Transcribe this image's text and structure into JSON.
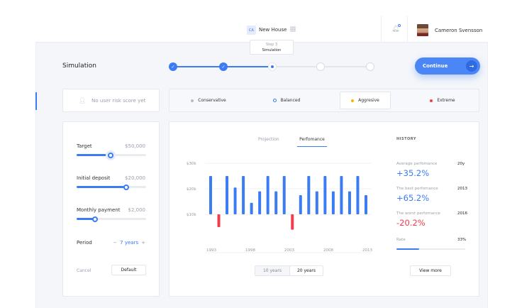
{
  "header": {
    "project_badge": "CA",
    "project_name": "New House",
    "user_name": "Cameron Svensson"
  },
  "page_title": "Simulation",
  "stepper": {
    "tooltip_step": "Step 3",
    "tooltip_label": "Simulation",
    "steps": [
      "done",
      "done",
      "current",
      "todo",
      "todo"
    ]
  },
  "continue_label": "Continue",
  "risk_score": "No user risk score yet",
  "risk_options": [
    {
      "label": "Conservative",
      "color": "#b7bcc6"
    },
    {
      "label": "Balanced",
      "color": "#3b7cf4",
      "selected": false
    },
    {
      "label": "Aggresive",
      "color": "#f5b400",
      "selected": true
    },
    {
      "label": "Extreme",
      "color": "#f23b4b"
    }
  ],
  "controls": {
    "target": {
      "label": "Target",
      "value": "$50,000",
      "fraction": 0.49
    },
    "deposit": {
      "label": "Initial deposit",
      "value": "$20,000",
      "fraction": 0.71
    },
    "monthly": {
      "label": "Monthly payment",
      "value": "$2,000",
      "fraction": 0.27
    },
    "period": {
      "label": "Period",
      "minus": "−",
      "value": "7 years",
      "plus": "+"
    },
    "cancel": "Cancel",
    "default": "Default"
  },
  "tabs": [
    "Projection",
    "Perfomance"
  ],
  "range_buttons": [
    "10 years",
    "20 years"
  ],
  "chart_data": {
    "type": "bar",
    "baseline": 10000,
    "ylim": [
      0,
      30000
    ],
    "y_ticks": [
      "$30k",
      "$20k",
      "$10k"
    ],
    "y_tick_values": [
      30000,
      20000,
      10000
    ],
    "x_ticks": [
      "1993",
      "1998",
      "2003",
      "2008",
      "2013"
    ],
    "values": [
      25000,
      5000,
      25000,
      20500,
      25000,
      14500,
      19000,
      25000,
      19000,
      25000,
      4000,
      17500,
      25000,
      19000,
      25000,
      19000,
      25000,
      19000,
      25000,
      17500
    ],
    "colors": {
      "positive": "#3b7cf4",
      "negative": "#f23b4b"
    },
    "grid": true
  },
  "history": {
    "title": "HISTORY",
    "items": [
      {
        "label": "Average perfomance",
        "tag": "20y",
        "value": "+35.2%",
        "color": "#3b7cf4"
      },
      {
        "label": "The best perfomance",
        "tag": "2013",
        "value": "+65.2%",
        "color": "#3b7cf4"
      },
      {
        "label": "The worst perfomance",
        "tag": "2016",
        "value": "-20.2%",
        "color": "#f23b4b"
      }
    ],
    "rate_label": "Rate",
    "rate_value": "33%",
    "rate_fraction": 0.33,
    "view_more": "View more"
  }
}
